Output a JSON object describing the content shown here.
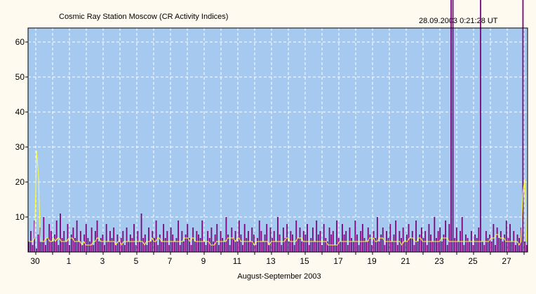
{
  "title": "Cosmic Ray Station Moscow (CR Activity Indices)",
  "timestamp": "28.09.2003 0:21:28 UT",
  "colors": {
    "plot_background": "#a6c9ef",
    "bars": "#7a0a7e",
    "smoothed_line": "#ffff44",
    "grid": "#ffffff",
    "page_background": "#fefaf0"
  },
  "chart_data": {
    "type": "bar",
    "title": "Cosmic Ray Station Moscow (CR Activity Indices)",
    "xlabel": "August-September 2003",
    "ylabel": "",
    "ylim": [
      0,
      64
    ],
    "grid": true,
    "x_start_label": "30",
    "x_tick_labels": [
      "30",
      "1",
      "3",
      "5",
      "7",
      "9",
      "11",
      "13",
      "15",
      "17",
      "19",
      "21",
      "23",
      "25",
      "27"
    ],
    "y_tick_labels": [
      "10",
      "20",
      "30",
      "40",
      "50",
      "60"
    ],
    "y_ticks": [
      10,
      20,
      30,
      40,
      50,
      60
    ],
    "series": [
      {
        "values": [
          3,
          6,
          2,
          9,
          1,
          5,
          7,
          3,
          10,
          2,
          4,
          8,
          6,
          3,
          5,
          9,
          2,
          11,
          4,
          6,
          3,
          8,
          2,
          5,
          7,
          4,
          9,
          3,
          6,
          2,
          5,
          8,
          4,
          3,
          7,
          2,
          6,
          9,
          3,
          4,
          5,
          2,
          8,
          3,
          6,
          4,
          7,
          2,
          5,
          3,
          4,
          6,
          2,
          7,
          3,
          5,
          4,
          8,
          2,
          6,
          3,
          11,
          4,
          5,
          2,
          7,
          3,
          6,
          4,
          9,
          2,
          5,
          3,
          8,
          4,
          6,
          2,
          7,
          5,
          3,
          4,
          9,
          2,
          6,
          3,
          5,
          8,
          4,
          2,
          7,
          3,
          6,
          5,
          4,
          9,
          3,
          2,
          6,
          4,
          7,
          3,
          5,
          8,
          2,
          6,
          4,
          3,
          10,
          5,
          2,
          7,
          4,
          6,
          3,
          9,
          5,
          2,
          8,
          4,
          6,
          3,
          7,
          5,
          2,
          4,
          9,
          6,
          3,
          5,
          8,
          2,
          7,
          4,
          6,
          3,
          10,
          5,
          2,
          7,
          4,
          8,
          3,
          6,
          5,
          2,
          9,
          4,
          7,
          3,
          6,
          5,
          8,
          2,
          4,
          7,
          3,
          9,
          5,
          6,
          2,
          8,
          4,
          3,
          7,
          5,
          6,
          2,
          9,
          4,
          3,
          8,
          5,
          6,
          2,
          7,
          4,
          3,
          9,
          5,
          2,
          6,
          8,
          4,
          3,
          7,
          5,
          2,
          6,
          4,
          10,
          3,
          5,
          7,
          2,
          6,
          4,
          8,
          3,
          5,
          9,
          2,
          6,
          4,
          7,
          3,
          5,
          8,
          4,
          6,
          2,
          9,
          3,
          5,
          7,
          4,
          6,
          2,
          8,
          5,
          3,
          10,
          4,
          6,
          7,
          3,
          5,
          9,
          2,
          8,
          64,
          64,
          4,
          7,
          3,
          6,
          10,
          2,
          5,
          4,
          3,
          6,
          2,
          5,
          4,
          7,
          64,
          3,
          2,
          6,
          4,
          5,
          3,
          8,
          2,
          7,
          4,
          6,
          3,
          5,
          9,
          4,
          8,
          3,
          6,
          2,
          5,
          4,
          7,
          64,
          3,
          2
        ]
      },
      {
        "values": [
          3,
          3,
          3,
          4,
          29,
          22,
          3,
          3,
          3,
          4,
          4,
          3,
          3,
          4,
          3,
          4,
          4,
          3,
          3,
          3,
          3,
          4,
          4,
          4,
          3,
          3,
          3,
          3,
          2,
          3,
          2,
          2,
          2,
          2,
          3,
          3,
          4,
          4,
          3,
          3,
          3,
          3,
          3,
          3,
          3,
          3,
          2,
          3,
          3,
          2,
          3,
          3,
          3,
          3,
          3,
          3,
          3,
          3,
          3,
          3,
          3,
          2,
          3,
          3,
          3,
          4,
          3,
          3,
          4,
          4,
          3,
          3,
          3,
          3,
          3,
          3,
          3,
          3,
          3,
          3,
          3,
          3,
          4,
          4,
          4,
          3,
          4,
          4,
          3,
          3,
          3,
          3,
          3,
          3,
          3,
          3,
          2,
          2,
          2,
          3,
          3,
          3,
          3,
          3,
          3,
          4,
          4,
          4,
          4,
          3,
          4,
          4,
          3,
          3,
          3,
          3,
          3,
          3,
          3,
          2,
          3,
          3,
          3,
          3,
          3,
          3,
          3,
          2,
          3,
          3,
          3,
          3,
          3,
          3,
          3,
          3,
          4,
          4,
          3,
          3,
          3,
          3,
          4,
          4,
          4,
          3,
          3,
          3,
          3,
          3,
          3,
          3,
          3,
          3,
          3,
          3,
          3,
          3,
          2,
          2,
          2,
          2,
          2,
          2,
          3,
          3,
          3,
          3,
          3,
          3,
          3,
          3,
          3,
          3,
          3,
          3,
          3,
          3,
          3,
          3,
          4,
          4,
          4,
          3,
          3,
          4,
          4,
          4,
          3,
          3,
          3,
          3,
          3,
          3,
          3,
          3,
          3,
          2,
          3,
          3,
          3,
          4,
          4,
          4,
          3,
          3,
          4,
          4,
          3,
          3,
          3,
          3,
          3,
          3,
          3,
          3,
          3,
          3,
          4,
          4,
          4,
          4,
          3,
          3,
          3,
          3,
          3,
          3,
          3,
          3,
          3,
          3,
          3,
          3,
          3,
          3,
          3,
          3,
          3,
          3,
          3,
          3,
          3,
          3,
          4,
          4,
          4,
          5,
          5,
          4,
          4,
          4,
          3,
          3,
          3,
          3,
          3,
          3,
          3,
          2,
          3,
          17,
          21,
          3
        ]
      }
    ]
  }
}
